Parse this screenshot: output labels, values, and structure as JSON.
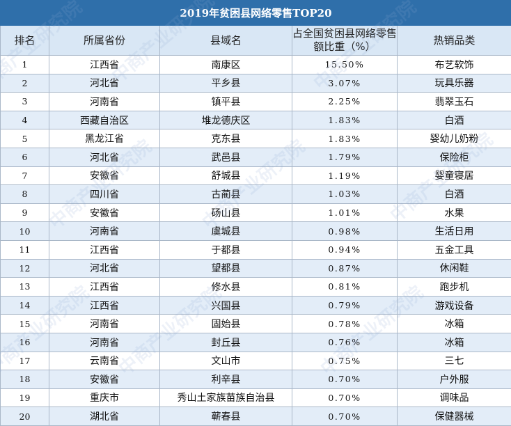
{
  "chart_data": {
    "type": "table",
    "title": "2019年贫困县网络零售TOP20",
    "columns": [
      "排名",
      "所属省份",
      "县域名",
      "占全国贫困县网络零售额比重（%）",
      "热销品类"
    ],
    "rows": [
      [
        "1",
        "江西省",
        "南康区",
        "15.50%",
        "布艺软饰"
      ],
      [
        "2",
        "河北省",
        "平乡县",
        "3.07%",
        "玩具乐器"
      ],
      [
        "3",
        "河南省",
        "镇平县",
        "2.25%",
        "翡翠玉石"
      ],
      [
        "4",
        "西藏自治区",
        "堆龙德庆区",
        "1.83%",
        "白酒"
      ],
      [
        "5",
        "黑龙江省",
        "克东县",
        "1.83%",
        "婴幼儿奶粉"
      ],
      [
        "6",
        "河北省",
        "武邑县",
        "1.79%",
        "保险柜"
      ],
      [
        "7",
        "安徽省",
        "舒城县",
        "1.19%",
        "婴童寝居"
      ],
      [
        "8",
        "四川省",
        "古蔺县",
        "1.03%",
        "白酒"
      ],
      [
        "9",
        "安徽省",
        "砀山县",
        "1.01%",
        "水果"
      ],
      [
        "10",
        "河南省",
        "虞城县",
        "0.98%",
        "生活日用"
      ],
      [
        "11",
        "江西省",
        "于都县",
        "0.94%",
        "五金工具"
      ],
      [
        "12",
        "河北省",
        "望都县",
        "0.87%",
        "休闲鞋"
      ],
      [
        "13",
        "江西省",
        "修水县",
        "0.81%",
        "跑步机"
      ],
      [
        "14",
        "江西省",
        "兴国县",
        "0.79%",
        "游戏设备"
      ],
      [
        "15",
        "河南省",
        "固始县",
        "0.78%",
        "冰箱"
      ],
      [
        "16",
        "河南省",
        "封丘县",
        "0.76%",
        "冰箱"
      ],
      [
        "17",
        "云南省",
        "文山市",
        "0.75%",
        "三七"
      ],
      [
        "18",
        "安徽省",
        "利辛县",
        "0.70%",
        "户外服"
      ],
      [
        "19",
        "重庆市",
        "秀山土家族苗族自治县",
        "0.70%",
        "调味品"
      ],
      [
        "20",
        "湖北省",
        "蕲春县",
        "0.70%",
        "保健器械"
      ]
    ]
  },
  "watermark": "中商产业研究院",
  "colors": {
    "title_bg": "#2f6faa",
    "header_bg": "#d9e7f5",
    "row_alt_bg": "#e3edf8",
    "border": "#a9b7c8"
  }
}
